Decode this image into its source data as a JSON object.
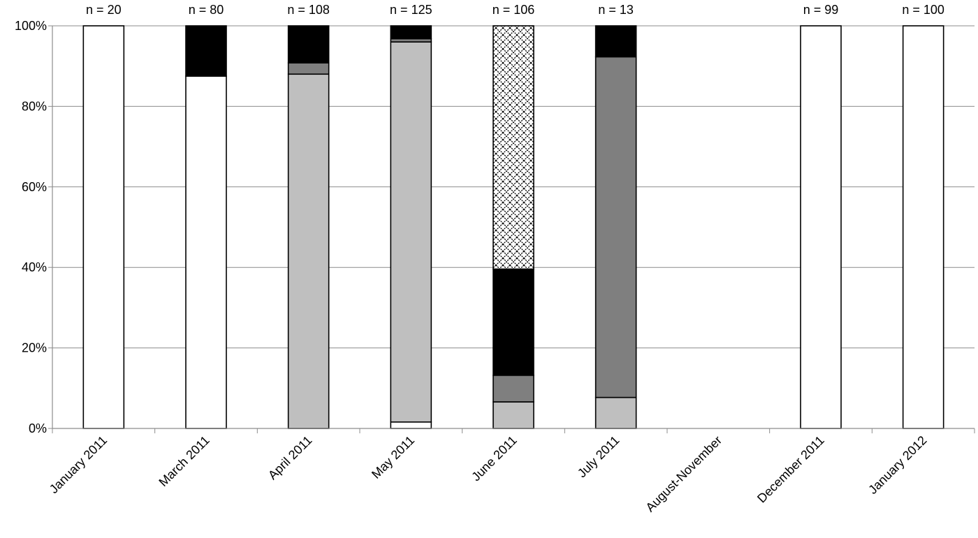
{
  "chart_data": {
    "type": "bar",
    "stacked": true,
    "percent": true,
    "categories": [
      "January 2011",
      "March 2011",
      "April 2011",
      "May 2011",
      "June 2011",
      "July 2011",
      "August-November",
      "December 2011",
      "January 2012"
    ],
    "n_labels": [
      "n = 20",
      "n = 80",
      "n = 108",
      "n = 125",
      "n = 106",
      "n = 13",
      "",
      "n = 99",
      "n = 100"
    ],
    "y_ticks": [
      "0%",
      "20%",
      "40%",
      "60%",
      "80%",
      "100%"
    ],
    "ylim": [
      0,
      100
    ],
    "grid": true,
    "legend": "none",
    "series": [
      {
        "fill": "#ffffff",
        "values": [
          100,
          87.5,
          0,
          1.6,
          0,
          0,
          0,
          100,
          100
        ]
      },
      {
        "fill": "#bfbfbf",
        "values": [
          0,
          0,
          88.0,
          94.4,
          6.6,
          7.7,
          0,
          0,
          0
        ]
      },
      {
        "fill": "#7f7f7f",
        "values": [
          0,
          0,
          2.8,
          0.8,
          6.6,
          84.6,
          0,
          0,
          0
        ]
      },
      {
        "fill": "#000000",
        "values": [
          0,
          12.5,
          9.2,
          3.2,
          26.4,
          7.7,
          0,
          0,
          0
        ]
      },
      {
        "fill": "crosshatch",
        "values": [
          0,
          0,
          0,
          0,
          60.4,
          0,
          0,
          0,
          0
        ]
      }
    ]
  }
}
